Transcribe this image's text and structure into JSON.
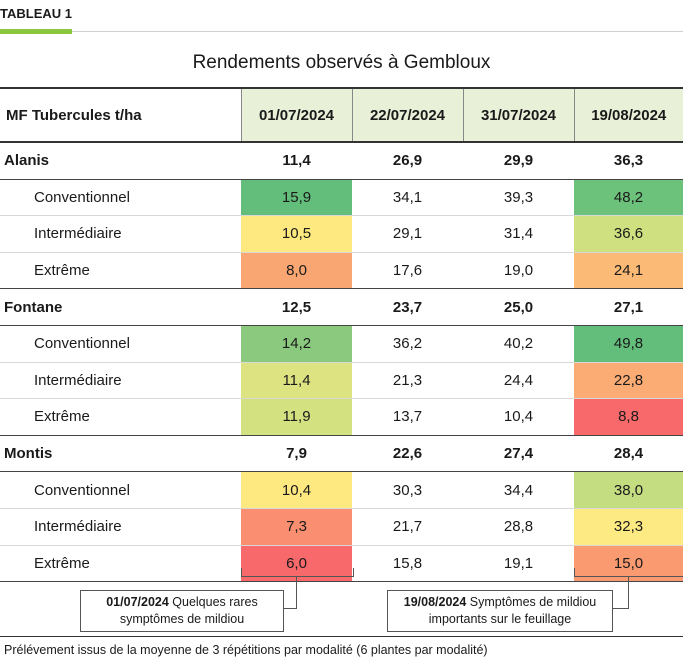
{
  "tag": "TABLEAU 1",
  "title": "Rendements observés à Gembloux",
  "header": {
    "label": "MF Tubercules t/ha",
    "dates": [
      "01/07/2024",
      "22/07/2024",
      "31/07/2024",
      "19/08/2024"
    ]
  },
  "groups": [
    {
      "name": "Alanis",
      "values": [
        "11,4",
        "26,9",
        "29,9",
        "36,3"
      ],
      "rows": [
        {
          "label": "Conventionnel",
          "values": [
            "15,9",
            "34,1",
            "39,3",
            "48,2"
          ],
          "colors": [
            "#63be7b",
            "",
            "",
            "#6cc17b"
          ]
        },
        {
          "label": "Intermédiaire",
          "values": [
            "10,5",
            "29,1",
            "31,4",
            "36,6"
          ],
          "colors": [
            "#fde97f",
            "",
            "",
            "#cee07f"
          ]
        },
        {
          "label": "Extrême",
          "values": [
            "8,0",
            "17,6",
            "19,0",
            "24,1"
          ],
          "colors": [
            "#f9a673",
            "",
            "",
            "#fbbb77"
          ]
        }
      ]
    },
    {
      "name": "Fontane",
      "values": [
        "12,5",
        "23,7",
        "25,0",
        "27,1"
      ],
      "rows": [
        {
          "label": "Conventionnel",
          "values": [
            "14,2",
            "36,2",
            "40,2",
            "49,8"
          ],
          "colors": [
            "#8bca7e",
            "",
            "",
            "#63be7b"
          ]
        },
        {
          "label": "Intermédiaire",
          "values": [
            "11,4",
            "21,3",
            "24,4",
            "22,8"
          ],
          "colors": [
            "#dee382",
            "",
            "",
            "#fbac75"
          ]
        },
        {
          "label": "Extrême",
          "values": [
            "11,9",
            "13,7",
            "10,4",
            "8,8"
          ],
          "colors": [
            "#d4e181",
            "",
            "",
            "#f8696b"
          ]
        }
      ]
    },
    {
      "name": "Montis",
      "values": [
        "7,9",
        "22,6",
        "27,4",
        "28,4"
      ],
      "rows": [
        {
          "label": "Conventionnel",
          "values": [
            "10,4",
            "30,3",
            "34,4",
            "38,0"
          ],
          "colors": [
            "#fee981",
            "",
            "",
            "#c4dd80"
          ]
        },
        {
          "label": "Intermédiaire",
          "values": [
            "7,3",
            "21,7",
            "28,8",
            "32,3"
          ],
          "colors": [
            "#f98e70",
            "",
            "",
            "#fdea82"
          ]
        },
        {
          "label": "Extrême",
          "values": [
            "6,0",
            "15,8",
            "19,1",
            "15,0"
          ],
          "colors": [
            "#f8696b",
            "",
            "",
            "#f99a71"
          ]
        }
      ]
    }
  ],
  "notes": {
    "left": {
      "date": "01/07/2024",
      "text": "Quelques rares symptômes de mildiou"
    },
    "right": {
      "date": "19/08/2024",
      "text": "Symptômes de mildiou importants sur le feuillage"
    }
  },
  "footer": "Prélévement issus de la moyenne de 3 répétitions par modalité (6 plantes par modalité)"
}
